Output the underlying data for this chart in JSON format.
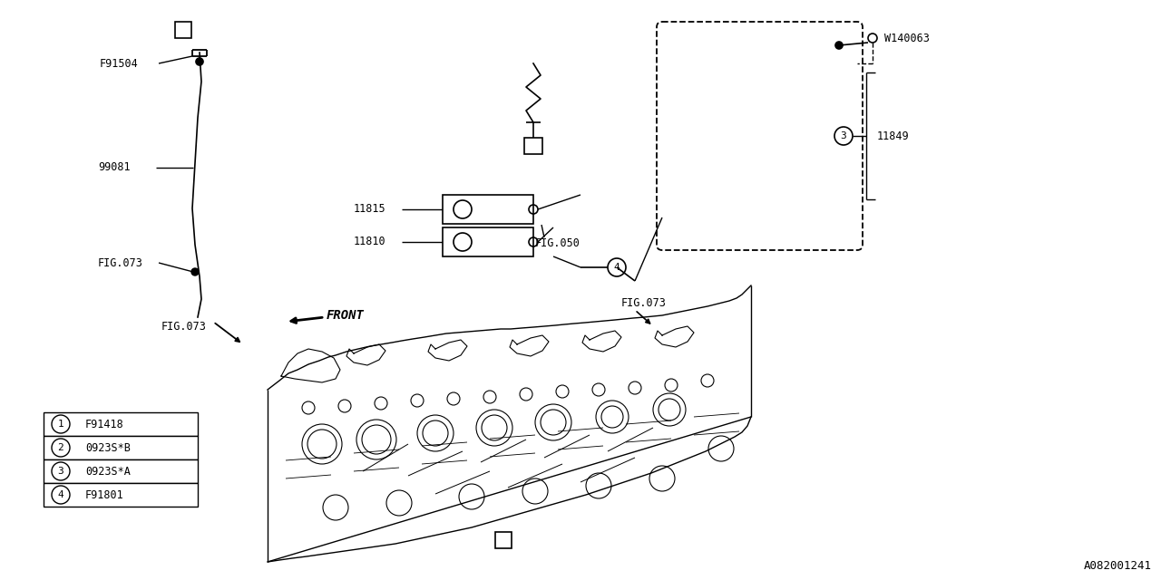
{
  "bg_color": "#ffffff",
  "line_color": "#000000",
  "diagram_id": "A082001241",
  "legend_items": [
    {
      "num": "1",
      "code": "F91418"
    },
    {
      "num": "2",
      "code": "0923S*B"
    },
    {
      "num": "3",
      "code": "0923S*A"
    },
    {
      "num": "4",
      "code": "F91801"
    }
  ]
}
